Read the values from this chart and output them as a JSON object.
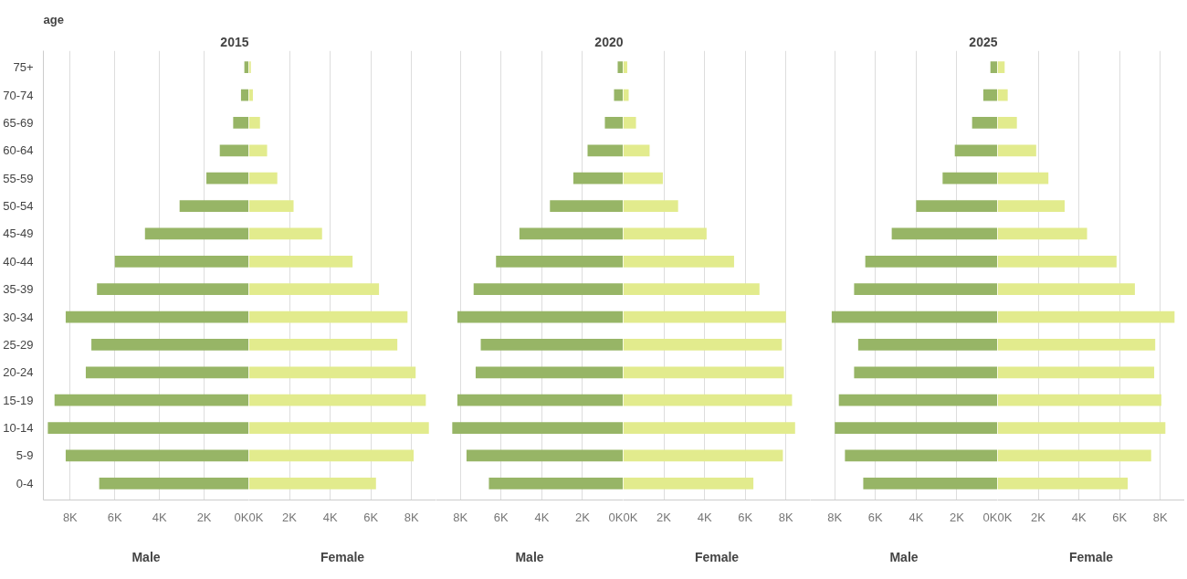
{
  "chart_data": [
    {
      "type": "bar",
      "orientation": "horizontal",
      "title": "2015",
      "ylabel": "age",
      "xlabel": "Male",
      "categories": [
        "75+",
        "70-74",
        "65-69",
        "60-64",
        "55-59",
        "50-54",
        "45-49",
        "40-44",
        "35-39",
        "30-34",
        "25-29",
        "20-24",
        "15-19",
        "10-14",
        "5-9",
        "0-4"
      ],
      "series": [
        {
          "color": "#97b566",
          "values": [
            200,
            350,
            700,
            1300,
            1900,
            3100,
            4650,
            6000,
            6800,
            8200,
            7050,
            7300,
            8700,
            9000,
            8200,
            6700
          ]
        }
      ],
      "xlim": [
        9200,
        0
      ],
      "xticks": [
        {
          "value": 8000,
          "label": "8K"
        },
        {
          "value": 6000,
          "label": "6K"
        },
        {
          "value": 4000,
          "label": "4K"
        },
        {
          "value": 2000,
          "label": "2K"
        },
        {
          "value": 0,
          "label": "0K"
        }
      ],
      "grid": "x"
    },
    {
      "type": "bar",
      "orientation": "horizontal",
      "xlabel": "Female",
      "categories": [
        null,
        null,
        null,
        null,
        null,
        null,
        null,
        null,
        null,
        null,
        null,
        null,
        null,
        null,
        null,
        null
      ],
      "series": [
        {
          "color": "#e2eb8d",
          "values": [
            100,
            200,
            550,
            900,
            1400,
            2200,
            3600,
            5100,
            6400,
            7800,
            7300,
            8200,
            8700,
            8850,
            8100,
            6250
          ]
        }
      ],
      "xlim": [
        0,
        9200
      ],
      "xticks": [
        {
          "value": 0,
          "label": "0K"
        },
        {
          "value": 2000,
          "label": "2K"
        },
        {
          "value": 4000,
          "label": "4K"
        },
        {
          "value": 6000,
          "label": "6K"
        },
        {
          "value": 8000,
          "label": "8K"
        }
      ],
      "grid": "x",
      "tick_labels": "x"
    },
    {
      "type": "bar",
      "orientation": "horizontal",
      "title": "2020",
      "xlabel": "Male",
      "categories": [
        null,
        null,
        null,
        null,
        null,
        null,
        null,
        null,
        null,
        null,
        null,
        null,
        null,
        null,
        null,
        null
      ],
      "series": [
        {
          "color": "#97b566",
          "values": [
            270,
            450,
            900,
            1750,
            2450,
            3600,
            5100,
            6250,
            7350,
            8150,
            7000,
            7250,
            8150,
            8400,
            7700,
            6600
          ]
        }
      ],
      "xlim": [
        9200,
        0
      ],
      "xticks": [
        {
          "value": 8000,
          "label": "8K"
        },
        {
          "value": 6000,
          "label": "6K"
        },
        {
          "value": 4000,
          "label": "4K"
        },
        {
          "value": 2000,
          "label": "2K"
        },
        {
          "value": 0,
          "label": "0K"
        }
      ],
      "grid": "x",
      "tick_labels": "x"
    },
    {
      "type": "bar",
      "orientation": "horizontal",
      "xlabel": "Female",
      "categories": [
        null,
        null,
        null,
        null,
        null,
        null,
        null,
        null,
        null,
        null,
        null,
        null,
        null,
        null,
        null,
        null
      ],
      "series": [
        {
          "color": "#e2eb8d",
          "values": [
            200,
            270,
            630,
            1300,
            1950,
            2700,
            4100,
            5450,
            6700,
            8000,
            7800,
            7900,
            8300,
            8450,
            7850,
            6400
          ]
        }
      ],
      "xlim": [
        0,
        9200
      ],
      "xticks": [
        {
          "value": 0,
          "label": "0K"
        },
        {
          "value": 2000,
          "label": "2K"
        },
        {
          "value": 4000,
          "label": "4K"
        },
        {
          "value": 6000,
          "label": "6K"
        },
        {
          "value": 8000,
          "label": "8K"
        }
      ],
      "grid": "x",
      "tick_labels": "x"
    },
    {
      "type": "bar",
      "orientation": "horizontal",
      "title": "2025",
      "xlabel": "Male",
      "categories": [
        null,
        null,
        null,
        null,
        null,
        null,
        null,
        null,
        null,
        null,
        null,
        null,
        null,
        null,
        null,
        null
      ],
      "series": [
        {
          "color": "#97b566",
          "values": [
            350,
            700,
            1250,
            2100,
            2700,
            4000,
            5200,
            6500,
            7050,
            8150,
            6850,
            7050,
            7800,
            8000,
            7500,
            6600
          ]
        }
      ],
      "xlim": [
        9200,
        0
      ],
      "xticks": [
        {
          "value": 8000,
          "label": "8K"
        },
        {
          "value": 6000,
          "label": "6K"
        },
        {
          "value": 4000,
          "label": "4K"
        },
        {
          "value": 2000,
          "label": "2K"
        },
        {
          "value": 0,
          "label": "0K"
        }
      ],
      "grid": "x",
      "tick_labels": "x"
    },
    {
      "type": "bar",
      "orientation": "horizontal",
      "xlabel": "Female",
      "categories": [
        null,
        null,
        null,
        null,
        null,
        null,
        null,
        null,
        null,
        null,
        null,
        null,
        null,
        null,
        null,
        null
      ],
      "series": [
        {
          "color": "#e2eb8d",
          "values": [
            350,
            500,
            950,
            1900,
            2500,
            3300,
            4400,
            5850,
            6750,
            8700,
            7750,
            7700,
            8050,
            8250,
            7550,
            6400
          ]
        }
      ],
      "xlim": [
        0,
        9200
      ],
      "xticks": [
        {
          "value": 0,
          "label": "0K"
        },
        {
          "value": 2000,
          "label": "2K"
        },
        {
          "value": 4000,
          "label": "4K"
        },
        {
          "value": 6000,
          "label": "6K"
        },
        {
          "value": 8000,
          "label": "8K"
        }
      ],
      "grid": "x",
      "tick_labels": "x"
    }
  ]
}
